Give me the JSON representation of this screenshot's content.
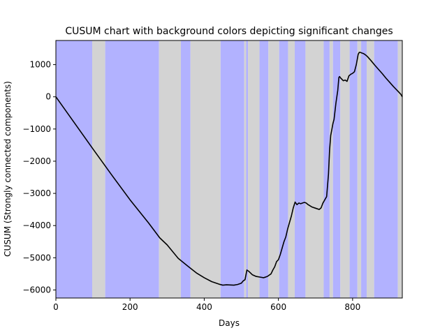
{
  "chart_data": {
    "type": "line",
    "title": "CUSUM chart with background colors depicting significant changes",
    "xlabel": "Days",
    "ylabel": "CUSUM (Strongly connected components)",
    "xlim": [
      0,
      934
    ],
    "ylim": [
      -6250,
      1750
    ],
    "xticks": [
      0,
      200,
      400,
      600,
      800
    ],
    "yticks": [
      1000,
      0,
      -1000,
      -2000,
      -3000,
      -4000,
      -5000,
      -6000
    ],
    "grid": false,
    "legend": "none",
    "colors": {
      "regime_a": "#b2b2ff",
      "regime_b": "#d3d3d3",
      "line": "#000000"
    },
    "background_segments": [
      {
        "x0": 0,
        "x1": 98,
        "color": "regime_a"
      },
      {
        "x0": 98,
        "x1": 133,
        "color": "regime_b"
      },
      {
        "x0": 133,
        "x1": 278,
        "color": "regime_a"
      },
      {
        "x0": 278,
        "x1": 337,
        "color": "regime_b"
      },
      {
        "x0": 337,
        "x1": 363,
        "color": "regime_a"
      },
      {
        "x0": 363,
        "x1": 444,
        "color": "regime_b"
      },
      {
        "x0": 444,
        "x1": 508,
        "color": "regime_a"
      },
      {
        "x0": 508,
        "x1": 513,
        "color": "regime_b"
      },
      {
        "x0": 513,
        "x1": 518,
        "color": "regime_a"
      },
      {
        "x0": 518,
        "x1": 549,
        "color": "regime_b"
      },
      {
        "x0": 549,
        "x1": 573,
        "color": "regime_a"
      },
      {
        "x0": 573,
        "x1": 602,
        "color": "regime_b"
      },
      {
        "x0": 602,
        "x1": 626,
        "color": "regime_a"
      },
      {
        "x0": 626,
        "x1": 644,
        "color": "regime_b"
      },
      {
        "x0": 644,
        "x1": 673,
        "color": "regime_a"
      },
      {
        "x0": 673,
        "x1": 722,
        "color": "regime_b"
      },
      {
        "x0": 722,
        "x1": 738,
        "color": "regime_a"
      },
      {
        "x0": 738,
        "x1": 747,
        "color": "regime_b"
      },
      {
        "x0": 747,
        "x1": 767,
        "color": "regime_a"
      },
      {
        "x0": 767,
        "x1": 792,
        "color": "regime_b"
      },
      {
        "x0": 792,
        "x1": 813,
        "color": "regime_a"
      },
      {
        "x0": 813,
        "x1": 823,
        "color": "regime_b"
      },
      {
        "x0": 823,
        "x1": 838,
        "color": "regime_a"
      },
      {
        "x0": 838,
        "x1": 858,
        "color": "regime_b"
      },
      {
        "x0": 858,
        "x1": 922,
        "color": "regime_a"
      },
      {
        "x0": 922,
        "x1": 934,
        "color": "regime_b"
      }
    ],
    "series": [
      {
        "x": [
          0,
          50,
          100,
          150,
          200,
          250,
          280,
          300,
          330,
          360,
          380,
          400,
          420,
          440,
          450,
          460,
          480,
          490,
          500,
          505,
          510,
          515,
          520,
          530,
          540,
          550,
          560,
          570,
          580,
          585,
          590,
          595,
          600,
          605,
          610,
          615,
          620,
          625,
          630,
          635,
          640,
          645,
          650,
          655,
          660,
          665,
          670,
          675,
          680,
          690,
          700,
          710,
          715,
          720,
          725,
          730,
          735,
          738,
          741,
          744,
          747,
          750,
          755,
          760,
          763,
          765,
          768,
          770,
          775,
          780,
          785,
          790,
          795,
          800,
          805,
          810,
          815,
          818,
          821,
          825,
          830,
          835,
          840,
          850,
          860,
          870,
          880,
          890,
          900,
          910,
          920,
          930,
          934
        ],
        "y": [
          0,
          -810,
          -1620,
          -2420,
          -3200,
          -3920,
          -4380,
          -4600,
          -5020,
          -5300,
          -5480,
          -5620,
          -5740,
          -5820,
          -5850,
          -5840,
          -5850,
          -5830,
          -5790,
          -5720,
          -5680,
          -5380,
          -5420,
          -5530,
          -5580,
          -5600,
          -5620,
          -5580,
          -5500,
          -5380,
          -5280,
          -5120,
          -5060,
          -4900,
          -4700,
          -4500,
          -4350,
          -4100,
          -3900,
          -3700,
          -3450,
          -3270,
          -3350,
          -3300,
          -3320,
          -3300,
          -3280,
          -3300,
          -3350,
          -3420,
          -3460,
          -3500,
          -3450,
          -3300,
          -3200,
          -3100,
          -2400,
          -1650,
          -1200,
          -1020,
          -830,
          -700,
          -200,
          200,
          600,
          630,
          580,
          560,
          500,
          520,
          480,
          650,
          700,
          730,
          780,
          1000,
          1320,
          1380,
          1380,
          1360,
          1340,
          1300,
          1250,
          1120,
          980,
          850,
          720,
          580,
          450,
          320,
          200,
          80,
          0
        ]
      }
    ]
  }
}
